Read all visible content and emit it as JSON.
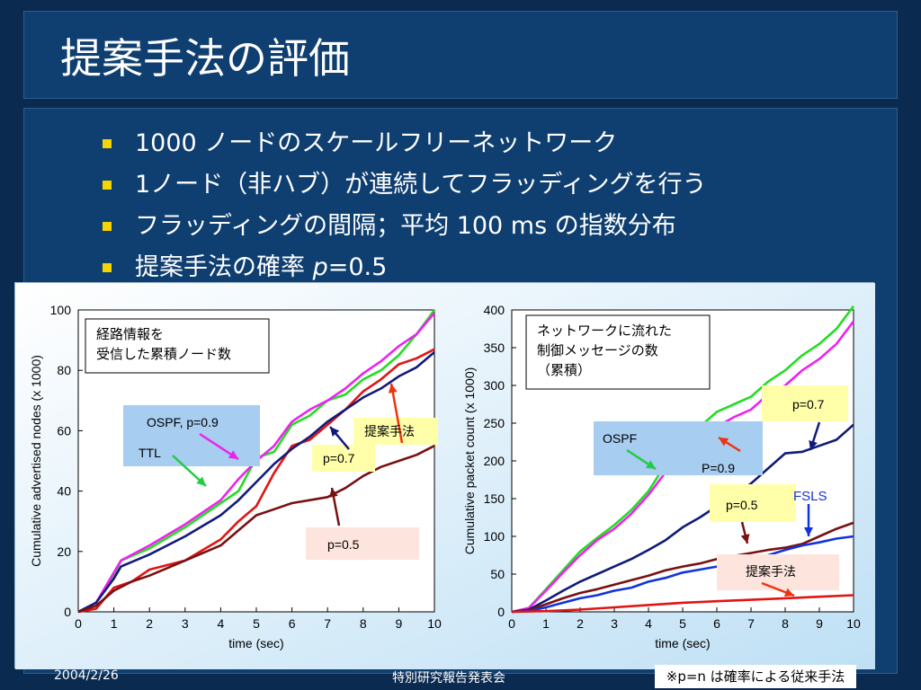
{
  "slide": {
    "title": "提案手法の評価",
    "bullets": [
      {
        "text": "1000 ノードのスケールフリーネットワーク"
      },
      {
        "text": "1ノード（非ハブ）が連続してフラッディングを行う"
      },
      {
        "text": "フラッディングの間隔；平均 100 ms の指数分布"
      },
      {
        "text_before": "提案手法の確率 ",
        "text_italic": "p",
        "text_after": "=0.5"
      }
    ],
    "footer": {
      "date": "2004/2/26",
      "center": "特別研究報告発表会",
      "note": "※p=n は確率による従来手法"
    },
    "colors": {
      "bullet": "#f5d400",
      "background": "#0b2a4f"
    }
  },
  "chart_data": [
    {
      "type": "line",
      "xlabel": "time (sec)",
      "ylabel": "Cumulative advertised nodes (x 1000)",
      "xlim": [
        0,
        10
      ],
      "ylim": [
        0,
        100
      ],
      "xticks": [
        "0",
        "1",
        "2",
        "3",
        "4",
        "5",
        "6",
        "7",
        "8",
        "9",
        "10"
      ],
      "yticks": [
        "0",
        "20",
        "40",
        "60",
        "80",
        "100"
      ],
      "box_label_lines": [
        "経路情報を",
        "受信した累積ノード数"
      ],
      "series": [
        {
          "color": "#22dd22",
          "x": [
            0,
            0.5,
            1,
            1.2,
            2,
            3,
            4,
            4.5,
            5,
            5.5,
            6,
            6.5,
            7,
            7.5,
            8,
            8.5,
            9,
            9.5,
            10
          ],
          "y": [
            0,
            3,
            12,
            17,
            21,
            28,
            36,
            40,
            51,
            53,
            62,
            65,
            70,
            72,
            77,
            80,
            85,
            92,
            100
          ]
        },
        {
          "color": "#ee22ee",
          "x": [
            0,
            0.5,
            1,
            1.2,
            2,
            3,
            4,
            4.5,
            5,
            5.5,
            6,
            6.5,
            7,
            7.5,
            8,
            8.5,
            9,
            9.5,
            10
          ],
          "y": [
            0,
            3,
            13,
            17,
            22,
            29,
            37,
            44,
            50,
            55,
            63,
            67,
            70,
            74,
            79,
            83,
            88,
            92,
            99
          ]
        },
        {
          "color": "#e01515",
          "x": [
            0,
            0.5,
            1,
            1.5,
            2,
            3,
            4,
            4.5,
            5,
            5.5,
            6,
            6.5,
            7,
            7.5,
            8,
            8.5,
            9,
            9.5,
            10
          ],
          "y": [
            0,
            1,
            8,
            10,
            14,
            17,
            24,
            30,
            35,
            46,
            55,
            57,
            62,
            67,
            73,
            77,
            82,
            84,
            87
          ]
        },
        {
          "color": "#111a7a",
          "x": [
            0,
            0.5,
            1,
            1.2,
            2,
            3,
            4,
            4.5,
            5,
            5.5,
            6,
            6.5,
            7,
            7.5,
            8,
            8.5,
            9,
            9.5,
            10
          ],
          "y": [
            0,
            3,
            11,
            15,
            19,
            25,
            32,
            37,
            43,
            49,
            54,
            58,
            63,
            67,
            71,
            74,
            78,
            81,
            86
          ]
        },
        {
          "color": "#7a1010",
          "x": [
            0,
            0.5,
            1,
            1.5,
            2,
            3,
            4,
            4.5,
            5,
            5.5,
            6,
            6.5,
            7,
            7.5,
            8,
            8.5,
            9,
            9.5,
            10
          ],
          "y": [
            0,
            2,
            7,
            10,
            12,
            17,
            22,
            27,
            32,
            34,
            36,
            37,
            38,
            41,
            45,
            48,
            50,
            52,
            55
          ]
        }
      ],
      "annotations": [
        {
          "text": "OSPF, p=0.9",
          "lines": [
            "OSPF, p=0.9"
          ]
        },
        {
          "text": "TTL",
          "lines": [
            "TTL"
          ]
        },
        {
          "text": "提案手法",
          "lines": [
            "提案手法"
          ]
        },
        {
          "text": "p=0.7",
          "lines": [
            "p=0.7"
          ]
        },
        {
          "text": "p=0.5",
          "lines": [
            "p=0.5"
          ]
        }
      ]
    },
    {
      "type": "line",
      "xlabel": "time (sec)",
      "ylabel": "Cumulative packet count (x 1000)",
      "xlim": [
        0,
        10
      ],
      "ylim": [
        0,
        400
      ],
      "xticks": [
        "0",
        "1",
        "2",
        "3",
        "4",
        "5",
        "6",
        "7",
        "8",
        "9",
        "10"
      ],
      "yticks": [
        "0",
        "50",
        "100",
        "150",
        "200",
        "250",
        "300",
        "350",
        "400"
      ],
      "box_label_lines": [
        "ネットワークに流れた",
        "制御メッセージの数",
        "（累積）"
      ],
      "series": [
        {
          "color": "#22dd22",
          "x": [
            0,
            0.5,
            1,
            1.5,
            2,
            2.5,
            3,
            3.5,
            4,
            4.5,
            5,
            5.5,
            6,
            6.5,
            7,
            7.5,
            8,
            8.5,
            9,
            9.5,
            10
          ],
          "y": [
            0,
            5,
            30,
            55,
            80,
            98,
            115,
            135,
            160,
            195,
            230,
            245,
            265,
            275,
            285,
            305,
            320,
            340,
            355,
            375,
            405
          ]
        },
        {
          "color": "#ee22ee",
          "x": [
            0,
            0.5,
            1,
            1.5,
            2,
            2.5,
            3,
            3.5,
            4,
            4.5,
            5,
            5.5,
            6,
            6.5,
            7,
            7.5,
            8,
            8.5,
            9,
            9.5,
            10
          ],
          "y": [
            0,
            5,
            28,
            52,
            75,
            95,
            110,
            130,
            155,
            185,
            218,
            232,
            245,
            258,
            268,
            288,
            300,
            320,
            335,
            355,
            385
          ]
        },
        {
          "color": "#111a7a",
          "x": [
            0,
            0.5,
            1,
            1.5,
            2,
            2.5,
            3,
            3.5,
            4,
            4.5,
            5,
            5.5,
            6,
            6.5,
            7,
            7.5,
            8,
            8.5,
            9,
            9.5,
            10
          ],
          "y": [
            0,
            3,
            15,
            28,
            40,
            50,
            60,
            70,
            82,
            95,
            112,
            125,
            140,
            155,
            170,
            190,
            210,
            212,
            220,
            228,
            248
          ]
        },
        {
          "color": "#7a1010",
          "x": [
            0,
            0.5,
            1,
            1.5,
            2,
            2.5,
            3,
            3.5,
            4,
            4.5,
            5,
            5.5,
            6,
            6.5,
            7,
            7.5,
            8,
            8.5,
            9,
            9.5,
            10
          ],
          "y": [
            0,
            2,
            10,
            18,
            25,
            30,
            36,
            42,
            48,
            55,
            60,
            64,
            70,
            74,
            78,
            82,
            85,
            90,
            100,
            110,
            118
          ]
        },
        {
          "color": "#1133dd",
          "x": [
            0,
            0.5,
            1,
            1.5,
            2,
            2.5,
            3,
            3.5,
            4,
            4.5,
            5,
            5.5,
            6,
            6.5,
            7,
            7.5,
            8,
            8.5,
            9,
            9.5,
            10
          ],
          "y": [
            0,
            1,
            6,
            12,
            18,
            22,
            28,
            32,
            40,
            45,
            52,
            56,
            60,
            66,
            70,
            75,
            82,
            88,
            92,
            97,
            100
          ]
        },
        {
          "color": "#e01515",
          "x": [
            0,
            1,
            2,
            3,
            4,
            5,
            6,
            7,
            8,
            9,
            10
          ],
          "y": [
            0,
            1,
            3,
            6,
            9,
            12,
            14,
            16,
            18,
            20,
            22
          ]
        }
      ],
      "annotations": [
        {
          "text": "OSPF",
          "lines": [
            "OSPF"
          ]
        },
        {
          "text": "P=0.9",
          "lines": [
            "P=0.9"
          ]
        },
        {
          "text": "p=0.7",
          "lines": [
            "p=0.7"
          ]
        },
        {
          "text": "FSLS",
          "lines": [
            "FSLS"
          ]
        },
        {
          "text": "p=0.5",
          "lines": [
            "p=0.5"
          ]
        },
        {
          "text": "提案手法",
          "lines": [
            "提案手法"
          ]
        }
      ]
    }
  ]
}
